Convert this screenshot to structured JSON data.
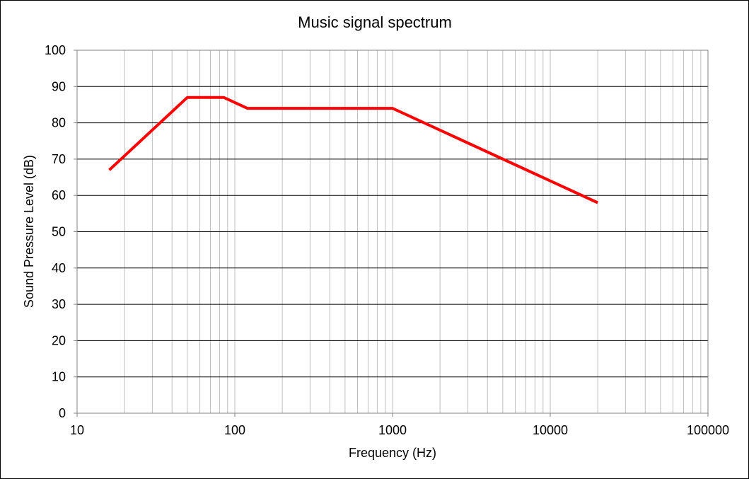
{
  "chart_data": {
    "type": "line",
    "title": "Music signal spectrum",
    "xlabel": "Frequency (Hz)",
    "ylabel": "Sound Pressure Level (dB)",
    "x_scale": "log",
    "xlim": [
      10,
      100000
    ],
    "ylim": [
      0,
      100
    ],
    "x_ticks": [
      "10",
      "100",
      "1000",
      "10000",
      "100000"
    ],
    "y_ticks": [
      "0",
      "10",
      "20",
      "30",
      "40",
      "50",
      "60",
      "70",
      "80",
      "90",
      "100"
    ],
    "grid": true,
    "legend": "none",
    "series": [
      {
        "color": "#ff0000",
        "x": [
          16,
          50,
          85,
          120,
          1000,
          20000
        ],
        "y": [
          67,
          87,
          87,
          84,
          84,
          58
        ]
      }
    ]
  }
}
